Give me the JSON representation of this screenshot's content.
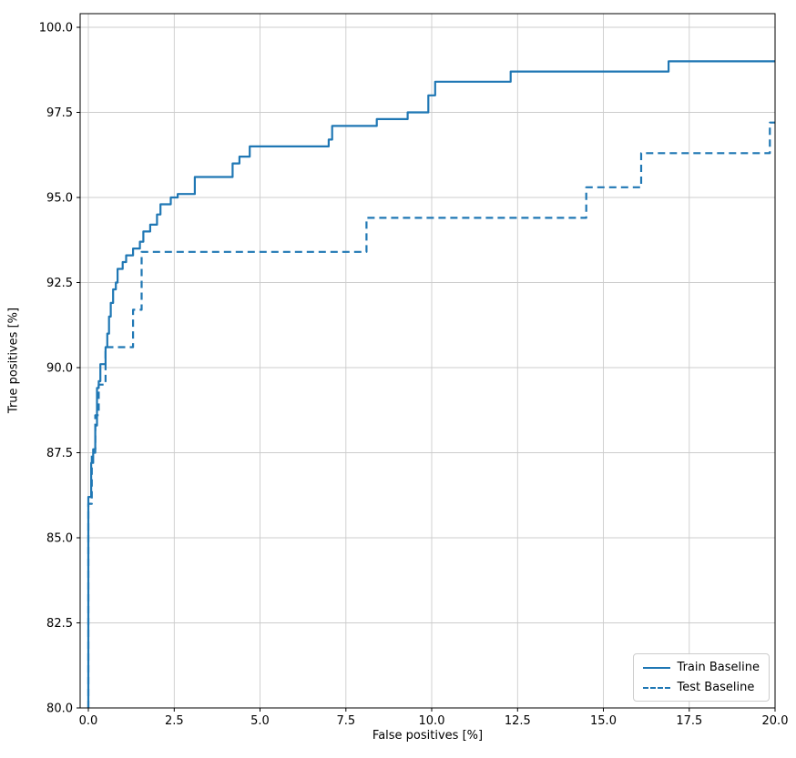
{
  "chart_data": {
    "type": "line",
    "subtype": "step-roc",
    "title": "",
    "xlabel": "False positives [%]",
    "ylabel": "True positives [%]",
    "xlim": [
      -0.24,
      20.0
    ],
    "ylim": [
      80.0,
      100.4
    ],
    "xticks": [
      0.0,
      2.5,
      5.0,
      7.5,
      10.0,
      12.5,
      15.0,
      17.5,
      20.0
    ],
    "yticks": [
      80.0,
      82.5,
      85.0,
      87.5,
      90.0,
      92.5,
      95.0,
      97.5,
      100.0
    ],
    "grid": true,
    "grid_color": "#cccccc",
    "line_color": "#1f77b4",
    "legend_position": "lower right",
    "series": [
      {
        "name": "Train Baseline",
        "style": "solid",
        "points": [
          [
            0.0,
            80.0
          ],
          [
            0.0,
            86.2
          ],
          [
            0.08,
            86.2
          ],
          [
            0.08,
            87.2
          ],
          [
            0.14,
            87.2
          ],
          [
            0.14,
            87.6
          ],
          [
            0.2,
            87.6
          ],
          [
            0.2,
            88.3
          ],
          [
            0.25,
            88.3
          ],
          [
            0.25,
            89.4
          ],
          [
            0.3,
            89.4
          ],
          [
            0.3,
            89.6
          ],
          [
            0.35,
            89.6
          ],
          [
            0.35,
            90.1
          ],
          [
            0.5,
            90.1
          ],
          [
            0.5,
            90.6
          ],
          [
            0.55,
            90.6
          ],
          [
            0.55,
            91.0
          ],
          [
            0.6,
            91.0
          ],
          [
            0.6,
            91.5
          ],
          [
            0.65,
            91.5
          ],
          [
            0.65,
            91.9
          ],
          [
            0.72,
            91.9
          ],
          [
            0.72,
            92.3
          ],
          [
            0.8,
            92.3
          ],
          [
            0.8,
            92.5
          ],
          [
            0.85,
            92.5
          ],
          [
            0.85,
            92.9
          ],
          [
            1.0,
            92.9
          ],
          [
            1.0,
            93.1
          ],
          [
            1.1,
            93.1
          ],
          [
            1.1,
            93.3
          ],
          [
            1.3,
            93.3
          ],
          [
            1.3,
            93.5
          ],
          [
            1.5,
            93.5
          ],
          [
            1.5,
            93.7
          ],
          [
            1.6,
            93.7
          ],
          [
            1.6,
            94.0
          ],
          [
            1.8,
            94.0
          ],
          [
            1.8,
            94.2
          ],
          [
            2.0,
            94.2
          ],
          [
            2.0,
            94.5
          ],
          [
            2.1,
            94.5
          ],
          [
            2.1,
            94.8
          ],
          [
            2.4,
            94.8
          ],
          [
            2.4,
            95.0
          ],
          [
            2.6,
            95.0
          ],
          [
            2.6,
            95.1
          ],
          [
            3.1,
            95.1
          ],
          [
            3.1,
            95.6
          ],
          [
            4.2,
            95.6
          ],
          [
            4.2,
            96.0
          ],
          [
            4.4,
            96.0
          ],
          [
            4.4,
            96.2
          ],
          [
            4.7,
            96.2
          ],
          [
            4.7,
            96.5
          ],
          [
            7.0,
            96.5
          ],
          [
            7.0,
            96.7
          ],
          [
            7.1,
            96.7
          ],
          [
            7.1,
            97.1
          ],
          [
            8.4,
            97.1
          ],
          [
            8.4,
            97.3
          ],
          [
            9.3,
            97.3
          ],
          [
            9.3,
            97.5
          ],
          [
            9.9,
            97.5
          ],
          [
            9.9,
            98.0
          ],
          [
            10.1,
            98.0
          ],
          [
            10.1,
            98.4
          ],
          [
            12.3,
            98.4
          ],
          [
            12.3,
            98.7
          ],
          [
            16.9,
            98.7
          ],
          [
            16.9,
            99.0
          ],
          [
            20.0,
            99.0
          ]
        ]
      },
      {
        "name": "Test Baseline",
        "style": "dashed",
        "points": [
          [
            0.0,
            80.0
          ],
          [
            0.0,
            86.0
          ],
          [
            0.1,
            86.0
          ],
          [
            0.1,
            87.5
          ],
          [
            0.2,
            87.5
          ],
          [
            0.2,
            88.6
          ],
          [
            0.3,
            88.6
          ],
          [
            0.3,
            89.5
          ],
          [
            0.5,
            89.5
          ],
          [
            0.5,
            90.6
          ],
          [
            1.3,
            90.6
          ],
          [
            1.3,
            91.7
          ],
          [
            1.55,
            91.7
          ],
          [
            1.55,
            93.4
          ],
          [
            8.1,
            93.4
          ],
          [
            8.1,
            94.4
          ],
          [
            14.5,
            94.4
          ],
          [
            14.5,
            95.3
          ],
          [
            16.1,
            95.3
          ],
          [
            16.1,
            96.3
          ],
          [
            19.85,
            96.3
          ],
          [
            19.85,
            97.2
          ],
          [
            20.0,
            97.2
          ]
        ]
      }
    ]
  },
  "legend": {
    "items": [
      {
        "label": "Train Baseline"
      },
      {
        "label": "Test Baseline"
      }
    ]
  }
}
